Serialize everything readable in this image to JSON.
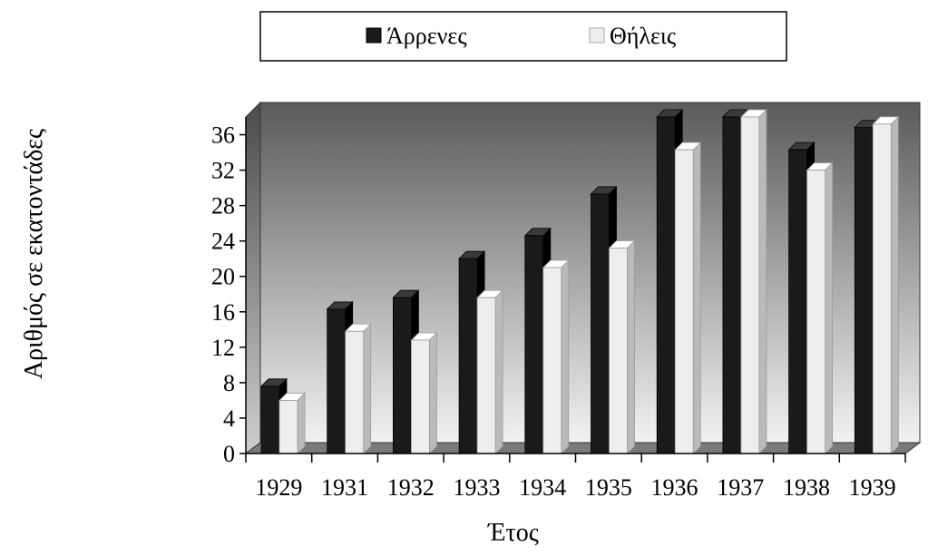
{
  "chart_data": {
    "type": "bar",
    "categories": [
      "1929",
      "1931",
      "1932",
      "1933",
      "1934",
      "1935",
      "1936",
      "1937",
      "1938",
      "1939"
    ],
    "series": [
      {
        "name": "Άρρενες",
        "color": "#1a1a1a",
        "values": [
          7.6,
          16.3,
          17.6,
          22.0,
          24.6,
          29.3,
          38.0,
          38.0,
          34.3,
          36.8
        ]
      },
      {
        "name": "Θήλεις",
        "color": "#eeeeee",
        "values": [
          6.0,
          13.8,
          12.8,
          17.6,
          21.0,
          23.2,
          34.3,
          38.0,
          32.0,
          37.2
        ]
      }
    ],
    "yticks": [
      "0",
      "4",
      "8",
      "12",
      "16",
      "20",
      "24",
      "28",
      "32",
      "36"
    ],
    "ylim": [
      0,
      38
    ],
    "xlabel": "Έτος",
    "ylabel": "Αριθμός σε εκατοντάδες",
    "legend_position": "top",
    "grid": false,
    "style": "3d-clustered-column",
    "back_wall_gradient": [
      "#5a5a5a",
      "#f2f2f2"
    ]
  }
}
